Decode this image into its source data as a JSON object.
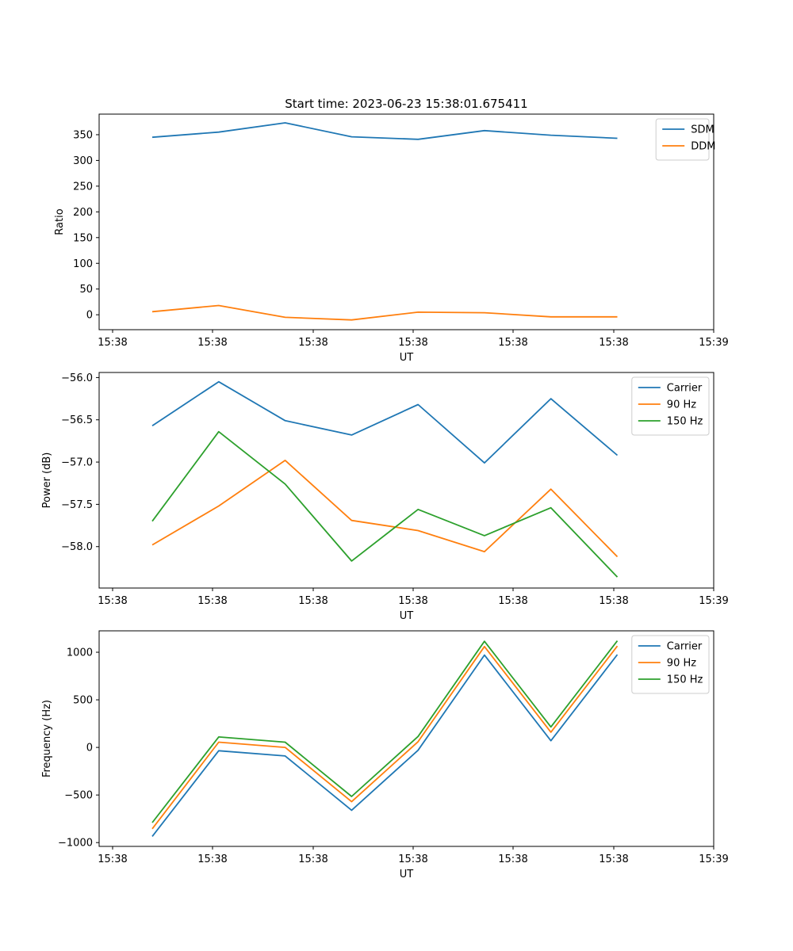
{
  "chart_data": [
    {
      "type": "line",
      "title": "Start time: 2023-06-23 15:38:01.675411",
      "xlabel": "UT",
      "ylabel": "Ratio",
      "x_tick_labels": [
        "15:38",
        "15:38",
        "15:38",
        "15:38",
        "15:38",
        "15:38",
        "15:39"
      ],
      "x_points": [
        1,
        2,
        3,
        4,
        5,
        6,
        7,
        8
      ],
      "xlim": [
        0.2,
        9.45
      ],
      "ylim": [
        -29,
        390
      ],
      "yticks": [
        0,
        50,
        100,
        150,
        200,
        250,
        300,
        350
      ],
      "grid": false,
      "legend": "top-right",
      "series": [
        {
          "name": "SDM",
          "color": "#1f77b4",
          "values": [
            345,
            355,
            373,
            346,
            341,
            358,
            349,
            343
          ]
        },
        {
          "name": "DDM",
          "color": "#ff7f0e",
          "values": [
            6,
            18,
            -5,
            -10,
            5,
            4,
            -4,
            -4
          ]
        }
      ]
    },
    {
      "type": "line",
      "title": "",
      "xlabel": "UT",
      "ylabel": "Power (dB)",
      "x_tick_labels": [
        "15:38",
        "15:38",
        "15:38",
        "15:38",
        "15:38",
        "15:38",
        "15:39"
      ],
      "x_points": [
        1,
        2,
        3,
        4,
        5,
        6,
        7,
        8
      ],
      "xlim": [
        0.2,
        9.45
      ],
      "ylim": [
        -58.49,
        -55.94
      ],
      "yticks": [
        -58.0,
        -57.5,
        -57.0,
        -56.5,
        -56.0
      ],
      "ytick_labels": [
        "−58.0",
        "−57.5",
        "−57.0",
        "−56.5",
        "−56.0"
      ],
      "grid": false,
      "legend": "top-right",
      "series": [
        {
          "name": "Carrier",
          "color": "#1f77b4",
          "values": [
            -56.57,
            -56.05,
            -56.51,
            -56.68,
            -56.32,
            -57.01,
            -56.25,
            -56.92
          ]
        },
        {
          "name": "90 Hz",
          "color": "#ff7f0e",
          "values": [
            -57.98,
            -57.52,
            -56.98,
            -57.69,
            -57.81,
            -58.06,
            -57.32,
            -58.12
          ]
        },
        {
          "name": "150 Hz",
          "color": "#2ca02c",
          "values": [
            -57.7,
            -56.64,
            -57.26,
            -58.17,
            -57.56,
            -57.87,
            -57.54,
            -58.36
          ]
        }
      ]
    },
    {
      "type": "line",
      "title": "",
      "xlabel": "UT",
      "ylabel": "Frequency (Hz)",
      "x_tick_labels": [
        "15:38",
        "15:38",
        "15:38",
        "15:38",
        "15:38",
        "15:38",
        "15:39"
      ],
      "x_points": [
        1,
        2,
        3,
        4,
        5,
        6,
        7,
        8
      ],
      "xlim": [
        0.2,
        9.45
      ],
      "ylim": [
        -1040,
        1225
      ],
      "yticks": [
        -1000,
        -500,
        0,
        500,
        1000
      ],
      "ytick_labels": [
        "−1000",
        "−500",
        "0",
        "500",
        "1000"
      ],
      "grid": false,
      "legend": "top-right",
      "series": [
        {
          "name": "Carrier",
          "color": "#1f77b4",
          "values": [
            -935,
            -35,
            -90,
            -660,
            -30,
            970,
            70,
            975
          ]
        },
        {
          "name": "90 Hz",
          "color": "#ff7f0e",
          "values": [
            -855,
            55,
            0,
            -570,
            60,
            1060,
            160,
            1065
          ]
        },
        {
          "name": "150 Hz",
          "color": "#2ca02c",
          "values": [
            -790,
            110,
            55,
            -515,
            115,
            1115,
            215,
            1120
          ]
        }
      ]
    }
  ]
}
